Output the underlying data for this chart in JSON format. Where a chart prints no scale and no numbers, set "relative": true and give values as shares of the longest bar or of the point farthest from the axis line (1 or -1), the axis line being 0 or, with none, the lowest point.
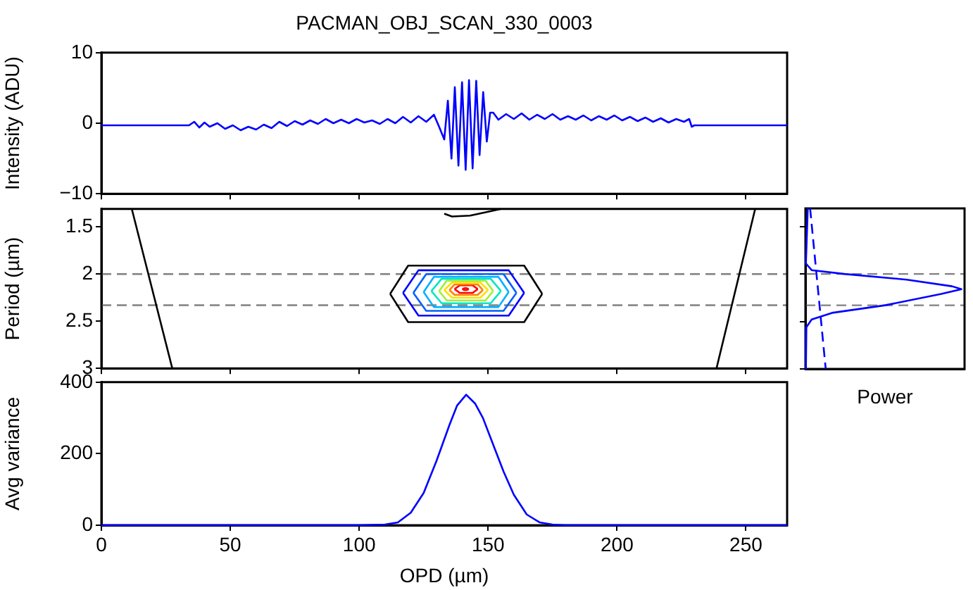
{
  "chart_data": [
    {
      "type": "line",
      "title": "PACMAN_OBJ_SCAN_330_0003",
      "ylabel": "Intensity (ADU)",
      "xlim": [
        0,
        266
      ],
      "xticks": [
        0,
        50,
        100,
        150,
        200,
        250
      ],
      "ylim": [
        -10,
        10
      ],
      "yticks": [
        {
          "value": -10,
          "label": "−10"
        },
        0,
        10
      ],
      "tick_labels": "y",
      "marker": "none",
      "x": [
        0,
        34,
        36,
        38,
        40,
        42,
        45,
        48,
        51,
        54,
        57,
        60,
        63,
        66,
        69,
        72,
        75,
        78,
        81,
        84,
        87,
        90,
        93,
        96,
        99,
        102,
        105,
        108,
        111,
        114,
        117,
        120,
        123,
        126,
        129,
        131,
        133.0,
        134.4,
        135.8,
        137.1,
        138.5,
        139.9,
        141.3,
        142.6,
        144.0,
        145.4,
        146.7,
        148.1,
        149.5,
        150.8,
        152,
        154,
        157,
        160,
        163,
        166,
        169,
        172,
        175,
        178,
        181,
        184,
        187,
        190,
        193,
        196,
        199,
        202,
        205,
        208,
        211,
        214,
        217,
        220,
        223,
        226,
        228,
        229,
        230,
        266
      ],
      "series": [
        {
          "color": "#0000ff",
          "values": [
            -0.3,
            -0.3,
            0.2,
            -0.6,
            0.1,
            -0.5,
            0,
            -0.8,
            -0.3,
            -1.0,
            -0.5,
            -0.9,
            -0.2,
            -0.7,
            0.2,
            -0.4,
            0.3,
            -0.2,
            0.4,
            -0.1,
            0.6,
            0,
            0.5,
            0,
            0.6,
            0.1,
            0.4,
            -0.1,
            0.6,
            0,
            0.9,
            0.1,
            1.0,
            0.2,
            1.2,
            -0.5,
            -2.3,
            3.2,
            -5,
            5.1,
            -6,
            5.8,
            -6.6,
            6.1,
            -6.4,
            6,
            -4.5,
            4.4,
            -2.6,
            1.5,
            1.5,
            0.5,
            1.3,
            0.6,
            1.4,
            0.5,
            1.2,
            0.6,
            1.3,
            0.5,
            1.0,
            0.5,
            1.1,
            0.4,
            1.0,
            0.5,
            1.1,
            0.4,
            0.9,
            0.3,
            0.8,
            0.2,
            0.7,
            0.1,
            0.6,
            0.2,
            0.6,
            -0.5,
            -0.3,
            -0.3
          ]
        }
      ]
    },
    {
      "type": "line",
      "ylabel": "Period (µm)",
      "xlim": [
        0,
        266
      ],
      "xticks": [
        0,
        50,
        100,
        150,
        200,
        250
      ],
      "ylim": [
        3,
        1.31
      ],
      "yticks": [
        1.5,
        2,
        2.5,
        3
      ],
      "tick_labels": "y",
      "marker": "none",
      "ref_lines": [
        {
          "axis": "y",
          "value": 2.0,
          "color": "#808080",
          "line_style": "dashed"
        },
        {
          "axis": "y",
          "value": 2.33,
          "color": "#808080",
          "line_style": "dashed"
        }
      ],
      "series": [
        {
          "color": "#000000",
          "x": [
            11.8,
            27.5
          ],
          "values": [
            1.31,
            3
          ]
        },
        {
          "color": "#000000",
          "x": [
            238.6,
            253.6
          ],
          "values": [
            3,
            1.31
          ]
        },
        {
          "color": "#000000",
          "x": [
            133,
            136,
            143,
            150,
            155
          ],
          "values": [
            1.36,
            1.39,
            1.38,
            1.34,
            1.31
          ]
        },
        {
          "color": "#000000",
          "x": [
            112,
            119,
            164,
            171
          ],
          "values": [
            2.21,
            1.91,
            1.91,
            2.21
          ]
        },
        {
          "color": "#000000",
          "x": [
            112,
            119,
            164,
            171
          ],
          "values": [
            2.21,
            2.51,
            2.51,
            2.21
          ]
        },
        {
          "color": "#0000ff",
          "x": [
            117,
            123,
            158,
            164
          ],
          "values": [
            2.2,
            1.96,
            1.96,
            2.2
          ]
        },
        {
          "color": "#0000ff",
          "x": [
            117,
            123,
            158,
            164
          ],
          "values": [
            2.2,
            2.44,
            2.44,
            2.2
          ]
        },
        {
          "color": "#0060ff",
          "x": [
            121,
            126,
            156,
            161
          ],
          "values": [
            2.2,
            2.0,
            2.0,
            2.2
          ]
        },
        {
          "color": "#0060ff",
          "x": [
            121,
            126,
            156,
            161
          ],
          "values": [
            2.2,
            2.39,
            2.39,
            2.2
          ]
        },
        {
          "color": "#00b0ff",
          "x": [
            125,
            129,
            154,
            158
          ],
          "values": [
            2.19,
            2.03,
            2.03,
            2.19
          ]
        },
        {
          "color": "#00b0ff",
          "x": [
            125,
            129,
            154,
            158
          ],
          "values": [
            2.19,
            2.35,
            2.35,
            2.19
          ]
        },
        {
          "color": "#00e8c0",
          "x": [
            128,
            132,
            151,
            155
          ],
          "values": [
            2.18,
            2.05,
            2.05,
            2.18
          ]
        },
        {
          "color": "#00e8c0",
          "x": [
            128,
            132,
            151,
            155
          ],
          "values": [
            2.18,
            2.31,
            2.31,
            2.18
          ]
        },
        {
          "color": "#a0f040",
          "x": [
            131,
            134,
            149,
            152
          ],
          "values": [
            2.18,
            2.07,
            2.07,
            2.18
          ]
        },
        {
          "color": "#a0f040",
          "x": [
            131,
            134,
            149,
            152
          ],
          "values": [
            2.18,
            2.28,
            2.28,
            2.18
          ]
        },
        {
          "color": "#ffe000",
          "x": [
            133,
            136,
            147,
            150
          ],
          "values": [
            2.17,
            2.09,
            2.09,
            2.17
          ]
        },
        {
          "color": "#ffe000",
          "x": [
            133,
            136,
            147,
            150
          ],
          "values": [
            2.17,
            2.25,
            2.25,
            2.17
          ]
        },
        {
          "color": "#ff8000",
          "x": [
            135,
            137,
            146,
            148
          ],
          "values": [
            2.17,
            2.11,
            2.11,
            2.17
          ]
        },
        {
          "color": "#ff8000",
          "x": [
            135,
            137,
            146,
            148
          ],
          "values": [
            2.17,
            2.22,
            2.22,
            2.17
          ]
        },
        {
          "color": "#ff0000",
          "x": [
            137,
            139,
            144,
            146
          ],
          "values": [
            2.16,
            2.12,
            2.12,
            2.16
          ]
        },
        {
          "color": "#ff0000",
          "x": [
            137,
            139,
            144,
            146
          ],
          "values": [
            2.16,
            2.2,
            2.2,
            2.16
          ]
        },
        {
          "color": "#ff0000",
          "x": [
            140,
            140.8,
            141.7,
            142.5
          ],
          "values": [
            2.16,
            2.15,
            2.15,
            2.16
          ]
        },
        {
          "color": "#ff0000",
          "x": [
            140,
            140.8,
            141.7,
            142.5
          ],
          "values": [
            2.16,
            2.17,
            2.17,
            2.16
          ]
        }
      ]
    },
    {
      "type": "line",
      "orientation": "horizontal",
      "relative": true,
      "xlabel": "Power",
      "ylim": [
        3,
        1.31
      ],
      "yticks": [
        1.5,
        2,
        2.5,
        3
      ],
      "tick_labels": false,
      "marker": "none",
      "ref_lines": [
        {
          "axis": "y",
          "value": 2.0,
          "color": "#808080",
          "line_style": "dashed"
        },
        {
          "axis": "y",
          "value": 2.33,
          "color": "#808080",
          "line_style": "dashed"
        }
      ],
      "series": [
        {
          "color": "#0000ff",
          "x": [
            1.31,
            1.89,
            1.96,
            2.0,
            2.06,
            2.13,
            2.16,
            2.21,
            2.33,
            2.41,
            2.48,
            2.56,
            3.0
          ],
          "values": [
            0.015,
            0.003,
            0.04,
            0.25,
            0.65,
            0.94,
            1,
            0.87,
            0.51,
            0.17,
            0.04,
            0.006,
            0.003
          ]
        },
        {
          "color": "#0000ff",
          "line_style": "dashed",
          "x": [
            1.31,
            3
          ],
          "values": [
            0.03,
            0.13
          ]
        }
      ]
    },
    {
      "type": "line",
      "xlabel": "OPD (µm)",
      "ylabel": "Avg variance",
      "xlim": [
        0,
        266
      ],
      "xticks": [
        0,
        50,
        100,
        150,
        200,
        250
      ],
      "ylim": [
        0,
        400
      ],
      "yticks": [
        0,
        200,
        400
      ],
      "marker": "none",
      "series": [
        {
          "color": "#0000ff",
          "x": [
            0,
            100,
            110,
            115,
            120,
            125,
            130,
            135,
            138,
            141.5,
            145,
            148,
            152,
            156,
            160,
            165,
            170,
            175,
            180,
            266
          ],
          "values": [
            0,
            0,
            2,
            8,
            35,
            90,
            180,
            280,
            335,
            365,
            340,
            300,
            225,
            150,
            85,
            30,
            8,
            2,
            0,
            0
          ]
        }
      ]
    }
  ]
}
